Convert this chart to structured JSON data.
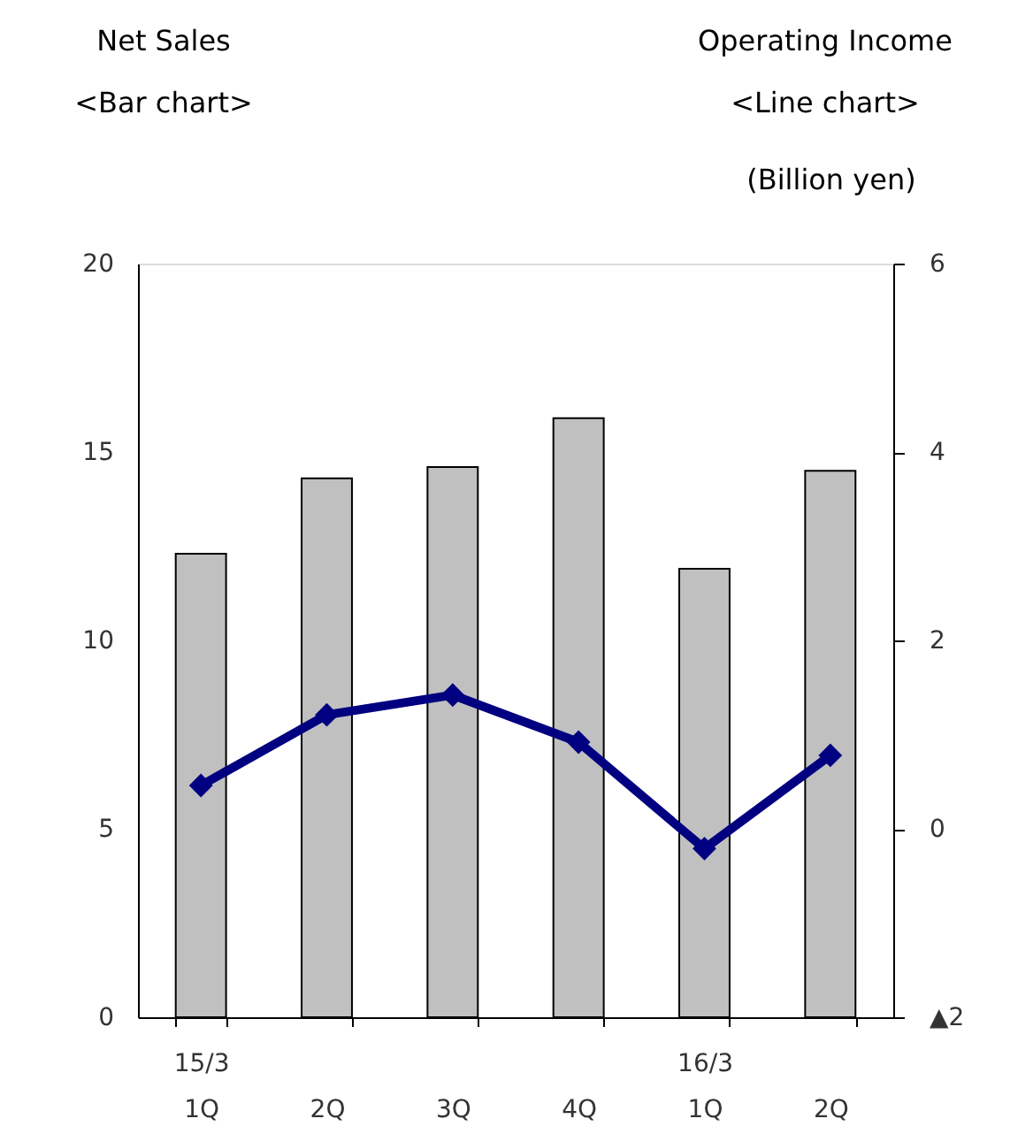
{
  "chart_data": {
    "type": "bar",
    "ylabel": "Net Sales\n<Bar chart>",
    "y2label": "Operating Income\n<Line chart>",
    "annotations": [
      "(Billion yen)"
    ],
    "categories": [
      "15/3\n1Q",
      "2Q",
      "3Q",
      "4Q",
      "16/3\n1Q",
      "2Q"
    ],
    "series": [
      {
        "color": "#c0c0c0",
        "values": [
          12.3,
          14.3,
          14.6,
          15.9,
          11.9,
          14.5
        ]
      },
      {
        "type": "line",
        "axis": "y2",
        "color": "#000080",
        "marker": "diamond",
        "values": [
          0.46,
          1.21,
          1.42,
          0.92,
          -0.21,
          0.78
        ]
      }
    ],
    "ylim": [
      0,
      20
    ],
    "yticks": [
      0,
      5,
      10,
      15,
      20
    ],
    "y2lim": [
      -2,
      6
    ],
    "y2ticks": [
      {
        "value": -2,
        "label": "▲2"
      },
      0,
      2,
      4,
      6
    ],
    "grid": false
  }
}
